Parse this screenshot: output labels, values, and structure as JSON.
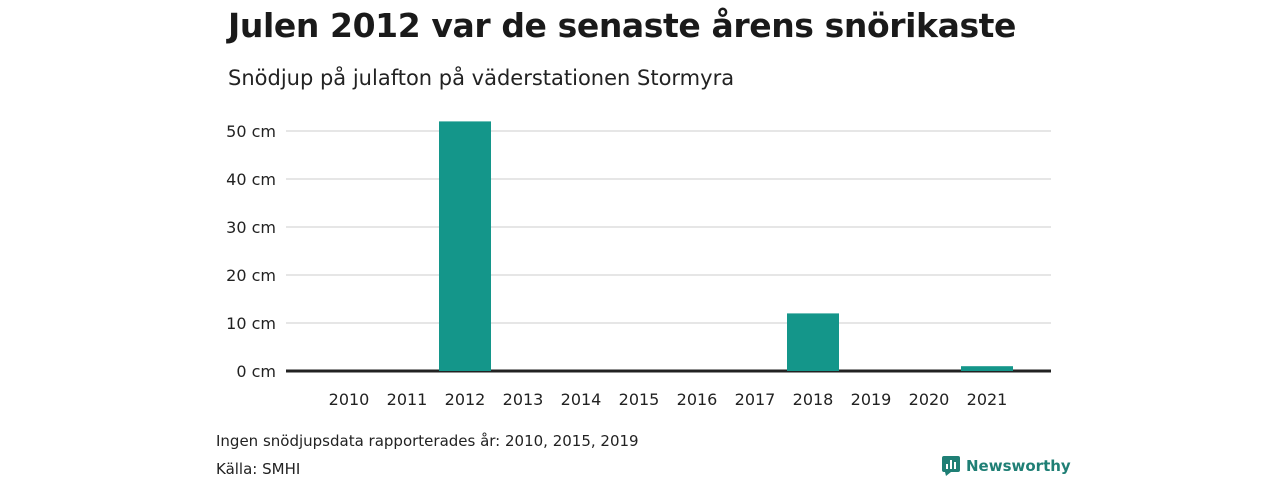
{
  "header": {
    "title": "Julen 2012 var de senaste årens snörikaste",
    "subtitle": "Snödjup på julafton på väderstationen Stormyra"
  },
  "footer": {
    "note": "Ingen snödjupsdata rapporterades år: 2010, 2015, 2019",
    "source": "Källa: SMHI",
    "brand": "Newsworthy",
    "brand_icon": "newsworthy-logo-icon"
  },
  "colors": {
    "bar": "#14968a",
    "grid": "#dddddd",
    "baseline": "#222222",
    "brand": "#1f7f75"
  },
  "chart_data": {
    "type": "bar",
    "categories": [
      "2010",
      "2011",
      "2012",
      "2013",
      "2014",
      "2015",
      "2016",
      "2017",
      "2018",
      "2019",
      "2020",
      "2021"
    ],
    "values": [
      null,
      0,
      52,
      0,
      0,
      null,
      0,
      0,
      12,
      null,
      0,
      1
    ],
    "ylim": [
      0,
      50
    ],
    "yticks": [
      0,
      10,
      20,
      30,
      40,
      50
    ],
    "ytick_labels": [
      "0 cm",
      "10 cm",
      "20 cm",
      "30 cm",
      "40 cm",
      "50 cm"
    ],
    "grid": true,
    "legend": "none"
  }
}
